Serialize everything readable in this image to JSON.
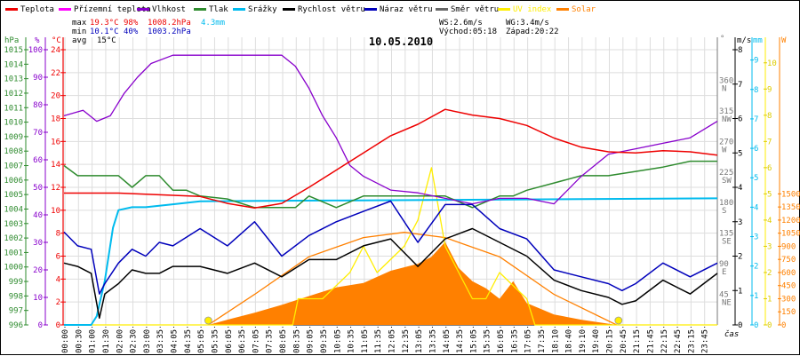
{
  "chart_data": {
    "type": "line",
    "title": "10.05.2010",
    "xlabel": "čas",
    "legend_position": "top",
    "legend": [
      {
        "name": "Teplota",
        "color": "#ee0000"
      },
      {
        "name": "Přízemní teplota",
        "color": "#ff00ff"
      },
      {
        "name": "Vlhkost",
        "color": "#8800cc"
      },
      {
        "name": "Tlak",
        "color": "#2e8b2e"
      },
      {
        "name": "Srážky",
        "color": "#00bbee"
      },
      {
        "name": "Rychlost větru",
        "color": "#000000"
      },
      {
        "name": "Náraz větru",
        "color": "#0000bb"
      },
      {
        "name": "Směr větru",
        "color": "#666666"
      },
      {
        "name": "UV index",
        "color": "#ffee00"
      },
      {
        "name": "Solar",
        "color": "#ff8000"
      }
    ],
    "stats": {
      "max_label": "max",
      "min_label": "min",
      "avg_label": "avg",
      "temp_max": "19.3°C",
      "hum_max": "98%",
      "press_max": "1008.2hPa",
      "rain": "4.3mm",
      "temp_min": "10.1°C",
      "hum_min": "40%",
      "press_min": "1003.2hPa",
      "temp_avg": "15°C",
      "ws": "WS:2.6m/s",
      "wg": "WG:3.4m/s",
      "sunrise": "Východ:05:18",
      "sunset": "Západ:20:22"
    },
    "x_ticks": [
      "00:00",
      "00:30",
      "01:00",
      "01:30",
      "02:00",
      "02:30",
      "03:00",
      "03:35",
      "04:05",
      "04:35",
      "05:05",
      "05:35",
      "06:05",
      "06:35",
      "07:05",
      "07:35",
      "08:05",
      "08:35",
      "09:05",
      "09:35",
      "10:05",
      "10:35",
      "11:05",
      "11:35",
      "12:05",
      "12:35",
      "13:05",
      "13:35",
      "14:05",
      "14:35",
      "15:05",
      "15:35",
      "16:05",
      "16:35",
      "17:05",
      "17:35",
      "18:10",
      "18:40",
      "19:10",
      "19:40",
      "20:15",
      "20:45",
      "21:15",
      "21:45",
      "22:15",
      "22:45",
      "23:15",
      "23:45"
    ],
    "axes": {
      "pressure": {
        "unit": "hPa",
        "range": [
          996,
          1015
        ],
        "ticks": [
          "1015",
          "1014",
          "1013",
          "1012",
          "1011",
          "1010",
          "1009",
          "1008",
          "1007",
          "1006",
          "1005",
          "1004",
          "1003",
          "1002",
          "1001",
          "1000",
          "999",
          "998",
          "997",
          "996"
        ]
      },
      "humidity": {
        "unit": "%",
        "range": [
          0,
          100
        ],
        "ticks": [
          "100",
          "90",
          "80",
          "70",
          "60",
          "50",
          "40",
          "30",
          "20",
          "10",
          "0"
        ]
      },
      "temperature": {
        "unit": "°C",
        "range": [
          0,
          24
        ],
        "ticks": [
          "24",
          "22",
          "20",
          "18",
          "16",
          "14",
          "12",
          "10",
          "8",
          "6",
          "4",
          "2",
          "0"
        ]
      },
      "direction": {
        "unit": "°",
        "range": [
          0,
          360
        ],
        "ticks": [
          {
            "v": "360",
            "d": "N"
          },
          {
            "v": "315",
            "d": "NW"
          },
          {
            "v": "270",
            "d": "W"
          },
          {
            "v": "225",
            "d": "SW"
          },
          {
            "v": "180",
            "d": "S"
          },
          {
            "v": "135",
            "d": "SE"
          },
          {
            "v": "90",
            "d": "E"
          },
          {
            "v": "45",
            "d": "NE"
          }
        ]
      },
      "wind": {
        "unit": "m/s",
        "range": [
          0,
          8
        ],
        "ticks": [
          "8",
          "7",
          "6",
          "5",
          "4",
          "3",
          "2",
          "1",
          "0"
        ]
      },
      "rain": {
        "unit": "mm",
        "range": [
          0,
          9
        ],
        "ticks": [
          "9",
          "8",
          "7",
          "6",
          "5",
          "4",
          "3",
          "2",
          "1",
          "0"
        ]
      },
      "uv": {
        "unit": "",
        "range": [
          0,
          10
        ],
        "ticks": [
          "10",
          "9",
          "8",
          "7",
          "6",
          "5",
          "4",
          "3",
          "2",
          "1",
          "0"
        ]
      },
      "solar": {
        "unit": "W",
        "range": [
          0,
          1500
        ],
        "ticks": [
          "1500",
          "1350",
          "1200",
          "1050",
          "900",
          "750",
          "600",
          "450",
          "300",
          "150",
          "0"
        ]
      }
    },
    "series": [
      {
        "name": "Teplota",
        "unit": "°C",
        "hours": [
          0,
          1,
          2,
          3,
          4,
          5,
          6,
          7,
          8,
          9,
          10,
          11,
          12,
          13,
          14,
          15,
          16,
          17,
          18,
          19,
          20,
          21,
          22,
          23,
          24
        ],
        "values": [
          11.5,
          11.5,
          11.5,
          11.4,
          11.3,
          11.2,
          10.6,
          10.2,
          10.6,
          12.0,
          13.5,
          15.0,
          16.5,
          17.5,
          18.8,
          18.3,
          18.0,
          17.4,
          16.3,
          15.5,
          15.1,
          15.0,
          15.2,
          15.1,
          14.8
        ]
      },
      {
        "name": "Vlhkost",
        "unit": "%",
        "hours": [
          0,
          0.7,
          1.2,
          1.7,
          2.2,
          2.7,
          3.2,
          4.0,
          5.0,
          6.0,
          7.0,
          8.0,
          8.5,
          9.0,
          9.5,
          10.0,
          10.5,
          11.0,
          12.0,
          13.0,
          14.0,
          15.0,
          16.0,
          17.0,
          18.0,
          19.0,
          20.0,
          21.0,
          22.0,
          23.0,
          24.0
        ],
        "values": [
          76,
          78,
          74,
          76,
          84,
          90,
          95,
          98,
          98,
          98,
          98,
          98,
          94,
          86,
          76,
          68,
          58,
          54,
          49,
          48,
          46,
          44,
          46,
          46,
          44,
          54,
          62,
          64,
          66,
          68,
          74
        ]
      },
      {
        "name": "Tlak",
        "unit": "hPa",
        "hours": [
          0,
          0.5,
          1.0,
          2.0,
          2.5,
          3.0,
          3.5,
          4.0,
          4.5,
          5.0,
          6.0,
          7.0,
          8.0,
          8.5,
          9.0,
          10.0,
          11.0,
          12.0,
          13.0,
          14.0,
          15.0,
          16.0,
          16.5,
          17.0,
          18.0,
          19.0,
          20.0,
          21.0,
          22.0,
          23.0,
          24.0
        ],
        "values": [
          1007,
          1006.3,
          1006.3,
          1006.3,
          1005.5,
          1006.3,
          1006.3,
          1005.3,
          1005.3,
          1004.9,
          1004.7,
          1004.1,
          1004.1,
          1004.1,
          1004.9,
          1004.1,
          1004.9,
          1004.9,
          1004.9,
          1004.9,
          1004.1,
          1004.9,
          1004.9,
          1005.3,
          1005.8,
          1006.3,
          1006.3,
          1006.6,
          1006.9,
          1007.3,
          1007.3
        ]
      },
      {
        "name": "Srážky",
        "unit": "mm",
        "hours": [
          0,
          1.0,
          1.2,
          1.5,
          1.8,
          2.0,
          2.5,
          3.0,
          4.0,
          5.0,
          24.0
        ],
        "values": [
          0,
          0,
          0.3,
          1.5,
          3.3,
          3.9,
          4.0,
          4.0,
          4.1,
          4.2,
          4.3
        ]
      },
      {
        "name": "Rychlost větru",
        "unit": "m/s",
        "hours": [
          0,
          0.5,
          1.0,
          1.3,
          1.5,
          2.0,
          2.5,
          3.0,
          3.5,
          4.0,
          5.0,
          6.0,
          7.0,
          8.0,
          9.0,
          10.0,
          11.0,
          12.0,
          13.0,
          14.0,
          15.0,
          16.0,
          17.0,
          18.0,
          19.0,
          20.0,
          20.5,
          21.0,
          22.0,
          23.0,
          24.0
        ],
        "values": [
          1.8,
          1.7,
          1.5,
          0.2,
          0.9,
          1.2,
          1.6,
          1.5,
          1.5,
          1.7,
          1.7,
          1.5,
          1.8,
          1.4,
          1.9,
          1.9,
          2.3,
          2.5,
          1.7,
          2.5,
          2.8,
          2.4,
          2.0,
          1.3,
          1.0,
          0.8,
          0.6,
          0.7,
          1.3,
          0.9,
          1.5
        ]
      },
      {
        "name": "Náraz větru",
        "unit": "m/s",
        "hours": [
          0,
          0.5,
          1.0,
          1.3,
          1.5,
          2.0,
          2.5,
          3.0,
          3.5,
          4.0,
          5.0,
          6.0,
          7.0,
          8.0,
          9.0,
          10.0,
          11.0,
          12.0,
          13.0,
          14.0,
          15.0,
          16.0,
          17.0,
          18.0,
          19.0,
          20.0,
          20.5,
          21.0,
          22.0,
          23.0,
          24.0
        ],
        "values": [
          2.7,
          2.3,
          2.2,
          0.9,
          1.2,
          1.8,
          2.2,
          2.0,
          2.4,
          2.3,
          2.8,
          2.3,
          3.0,
          2.0,
          2.6,
          3.0,
          3.3,
          3.6,
          2.4,
          3.5,
          3.5,
          2.8,
          2.5,
          1.6,
          1.4,
          1.2,
          1.0,
          1.2,
          1.8,
          1.4,
          1.8
        ]
      },
      {
        "name": "Solar",
        "unit": "W",
        "hours": [
          0,
          5.3,
          6.0,
          7.0,
          8.0,
          9.0,
          10.0,
          11.0,
          12.0,
          13.0,
          13.5,
          14.0,
          14.5,
          15.0,
          15.5,
          16.0,
          16.5,
          17.0,
          18.0,
          19.0,
          20.3,
          24.0
        ],
        "values": [
          0,
          0,
          60,
          140,
          230,
          330,
          430,
          480,
          620,
          700,
          780,
          950,
          650,
          500,
          420,
          300,
          500,
          250,
          120,
          60,
          0,
          0
        ]
      },
      {
        "name": "Solar (theoretical)",
        "unit": "W",
        "hours": [
          5.3,
          7,
          9,
          11,
          12.5,
          14,
          16,
          18,
          20.3
        ],
        "values": [
          0,
          350,
          780,
          1000,
          1060,
          1000,
          780,
          350,
          0
        ]
      },
      {
        "name": "UV index",
        "unit": "",
        "hours": [
          0,
          8.4,
          8.6,
          9.5,
          10.5,
          11.0,
          11.5,
          12.5,
          13.0,
          13.5,
          14.0,
          14.5,
          15.0,
          15.5,
          16.0,
          17.0,
          17.3,
          17.6,
          24.0
        ],
        "values": [
          0,
          0,
          1,
          1,
          2,
          3,
          2,
          3,
          4,
          6,
          3,
          2,
          1,
          1,
          2,
          1,
          0,
          0,
          0
        ]
      }
    ]
  }
}
